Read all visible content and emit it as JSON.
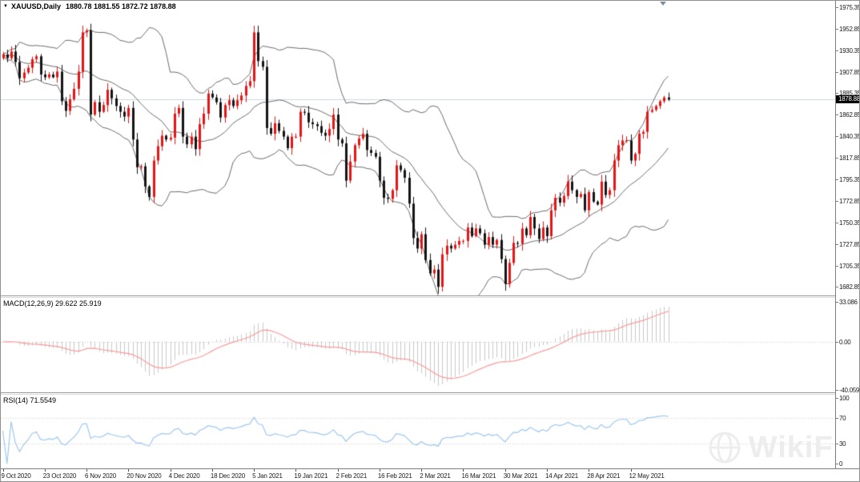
{
  "window": {
    "collapse_arrow": "▼",
    "symbol": "XAUUSD,Daily",
    "ohlc_text": "1880.78 1881.55 1872.72 1878.88"
  },
  "main_chart": {
    "price_labels": [
      "1975.35",
      "1952.85",
      "1930.35",
      "1907.85",
      "1885.35",
      "1862.85",
      "1840.35",
      "1817.85",
      "1795.35",
      "1772.85",
      "1750.35",
      "1727.85",
      "1705.35",
      "1682.85"
    ],
    "current_price_label": "1878.88"
  },
  "macd_panel": {
    "label": "MACD(12,26,9) 29.622 25.919",
    "axis_labels": [
      "33.086",
      "0.00",
      "-40.059"
    ]
  },
  "rsi_panel": {
    "label": "RSI(14) 71.5549",
    "axis_labels": [
      "100",
      "70",
      "30",
      "0"
    ]
  },
  "time_axis": {
    "labels": [
      "9 Oct 2020",
      "23 Oct 2020",
      "6 Nov 2020",
      "20 Nov 2020",
      "4 Dec 2020",
      "18 Dec 2020",
      "5 Jan 2021",
      "19 Jan 2021",
      "2 Feb 2021",
      "16 Feb 2021",
      "2 Mar 2021",
      "16 Mar 2021",
      "30 Mar 2021",
      "14 Apr 2021",
      "28 Apr 2021",
      "12 May 2021"
    ]
  },
  "watermark": {
    "text": "WikiFX"
  },
  "colors": {
    "bull": "#e81414",
    "bear": "#151515",
    "bollinger": "#6a6a6a",
    "macd_hist": "#c9c9c9",
    "macd_signal": "#f89a9a",
    "rsi_line": "#9ec7ef",
    "price_line": "#ccd6de",
    "grid_dotted": "#c9c9c9"
  },
  "chart_data": {
    "type": "candlestick",
    "symbol": "XAUUSD",
    "timeframe": "Daily",
    "last_bar": {
      "open": 1880.78,
      "high": 1881.55,
      "low": 1872.72,
      "close": 1878.88
    },
    "y_axis_ticks": [
      1975.35,
      1952.85,
      1930.35,
      1907.85,
      1885.35,
      1862.85,
      1840.35,
      1817.85,
      1795.35,
      1772.85,
      1750.35,
      1727.85,
      1705.35,
      1682.85
    ],
    "x_tick_labels": [
      "9 Oct 2020",
      "23 Oct 2020",
      "6 Nov 2020",
      "20 Nov 2020",
      "4 Dec 2020",
      "18 Dec 2020",
      "5 Jan 2021",
      "19 Jan 2021",
      "2 Feb 2021",
      "16 Feb 2021",
      "2 Mar 2021",
      "16 Mar 2021",
      "30 Mar 2021",
      "14 Apr 2021",
      "28 Apr 2021",
      "12 May 2021"
    ],
    "x_tick_bar_indices": [
      0,
      10,
      20,
      30,
      40,
      50,
      60,
      70,
      80,
      90,
      100,
      110,
      120,
      130,
      140,
      150
    ],
    "bar_spacing_px": 5.227,
    "closes": [
      1926,
      1922,
      1929,
      1918,
      1901,
      1907,
      1912,
      1921,
      1924,
      1905,
      1902,
      1905,
      1902,
      1908,
      1877,
      1867,
      1879,
      1890,
      1908,
      1949,
      1951,
      1863,
      1876,
      1866,
      1873,
      1889,
      1880,
      1872,
      1866,
      1861,
      1870,
      1837,
      1808,
      1809,
      1788,
      1777,
      1815,
      1830,
      1841,
      1837,
      1839,
      1864,
      1870,
      1840,
      1832,
      1840,
      1827,
      1853,
      1864,
      1885,
      1881,
      1876,
      1860,
      1873,
      1878,
      1872,
      1878,
      1883,
      1893,
      1898,
      1949,
      1919,
      1913,
      1849,
      1843,
      1854,
      1846,
      1840,
      1828,
      1840,
      1840,
      1866,
      1865,
      1855,
      1853,
      1851,
      1844,
      1841,
      1848,
      1863,
      1837,
      1833,
      1794,
      1814,
      1831,
      1838,
      1843,
      1826,
      1823,
      1819,
      1794,
      1776,
      1775,
      1784,
      1810,
      1805,
      1797,
      1770,
      1734,
      1723,
      1738,
      1711,
      1697,
      1701,
      1683,
      1717,
      1726,
      1723,
      1727,
      1731,
      1731,
      1745,
      1736,
      1744,
      1739,
      1727,
      1735,
      1727,
      1732,
      1712,
      1686,
      1708,
      1729,
      1728,
      1744,
      1737,
      1756,
      1744,
      1733,
      1745,
      1736,
      1763,
      1776,
      1771,
      1778,
      1793,
      1784,
      1777,
      1780,
      1763,
      1782,
      1772,
      1769,
      1793,
      1779,
      1784,
      1815,
      1831,
      1836,
      1836,
      1815,
      1822,
      1843,
      1845,
      1866,
      1868,
      1872,
      1877,
      1881,
      1878.88
    ],
    "overlays": [
      {
        "name": "Bollinger Bands",
        "period": 20,
        "deviation": 2
      }
    ],
    "indicators": [
      {
        "name": "MACD",
        "params": [
          12,
          26,
          9
        ],
        "current_main": 29.622,
        "current_signal": 25.919,
        "scale_max": 33.086,
        "scale_min": -40.059
      },
      {
        "name": "RSI",
        "params": [
          14
        ],
        "current": 71.5549,
        "levels": [
          30,
          70
        ],
        "scale": [
          0,
          100
        ]
      }
    ]
  }
}
